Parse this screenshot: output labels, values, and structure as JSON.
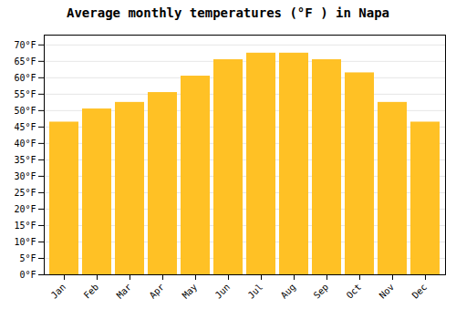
{
  "chart_data": {
    "type": "bar",
    "title": "Average monthly temperatures (°F ) in Napa",
    "categories": [
      "Jan",
      "Feb",
      "Mar",
      "Apr",
      "May",
      "Jun",
      "Jul",
      "Aug",
      "Sep",
      "Oct",
      "Nov",
      "Dec"
    ],
    "values": [
      46.5,
      50.5,
      52.5,
      55.5,
      60.5,
      65.5,
      67.5,
      67.5,
      65.5,
      61.5,
      52.5,
      46.5
    ],
    "color": "#FFC125",
    "ylim": [
      0,
      73
    ],
    "yticks": [
      {
        "value": 0,
        "label": "0°F"
      },
      {
        "value": 5,
        "label": "5°F"
      },
      {
        "value": 10,
        "label": "10°F"
      },
      {
        "value": 15,
        "label": "15°F"
      },
      {
        "value": 20,
        "label": "20°F"
      },
      {
        "value": 25,
        "label": "25°F"
      },
      {
        "value": 30,
        "label": "30°F"
      },
      {
        "value": 35,
        "label": "35°F"
      },
      {
        "value": 40,
        "label": "40°F"
      },
      {
        "value": 45,
        "label": "45°F"
      },
      {
        "value": 50,
        "label": "50°F"
      },
      {
        "value": 55,
        "label": "55°F"
      },
      {
        "value": 60,
        "label": "60°F"
      },
      {
        "value": 65,
        "label": "65°F"
      },
      {
        "value": 70,
        "label": "70°F"
      }
    ],
    "grid": true
  }
}
